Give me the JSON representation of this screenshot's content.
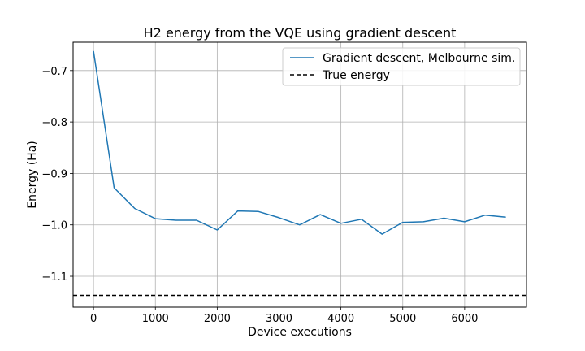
{
  "chart_data": {
    "type": "line",
    "title": "H2 energy from the VQE using gradient descent",
    "xlabel": "Device executions",
    "ylabel": "Energy (Ha)",
    "xlim": [
      -330,
      7000
    ],
    "ylim": [
      -1.16,
      -0.645
    ],
    "x_ticks": [
      0,
      1000,
      2000,
      3000,
      4000,
      5000,
      6000
    ],
    "x_tick_labels": [
      "0",
      "1000",
      "2000",
      "3000",
      "4000",
      "5000",
      "6000"
    ],
    "y_ticks": [
      -0.7,
      -0.8,
      -0.9,
      -1.0,
      -1.1
    ],
    "y_tick_labels": [
      "−0.7",
      "−0.8",
      "−0.9",
      "−1.0",
      "−1.1"
    ],
    "grid": true,
    "legend_position": "top-right",
    "series": [
      {
        "name": "Gradient descent, Melbourne sim.",
        "color": "#1f77b4",
        "style": "solid",
        "x": [
          0,
          333,
          666,
          1000,
          1333,
          1666,
          2000,
          2333,
          2666,
          3000,
          3333,
          3666,
          4000,
          4333,
          4666,
          5000,
          5333,
          5666,
          6000,
          6333,
          6666
        ],
        "y": [
          -0.662,
          -0.928,
          -0.968,
          -0.988,
          -0.991,
          -0.991,
          -1.01,
          -0.973,
          -0.974,
          -0.986,
          -1.0,
          -0.98,
          -0.997,
          -0.989,
          -1.018,
          -0.995,
          -0.994,
          -0.987,
          -0.994,
          -0.981,
          -0.985
        ]
      },
      {
        "name": "True energy",
        "color": "#000000",
        "style": "dashed",
        "y": -1.137
      }
    ]
  }
}
